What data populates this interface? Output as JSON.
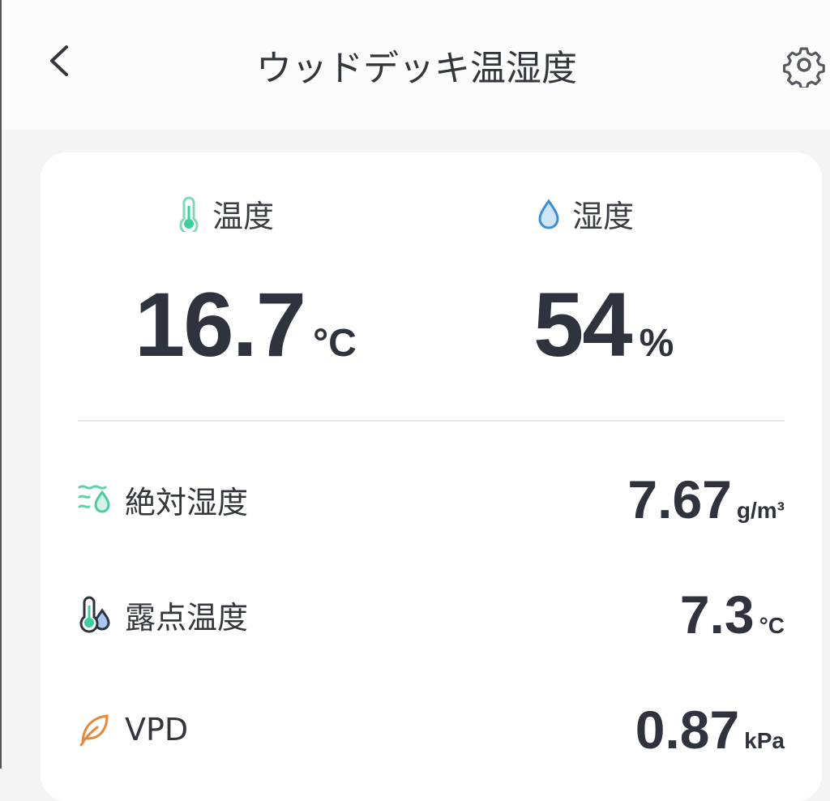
{
  "header": {
    "title": "ウッドデッキ温湿度",
    "back_icon": "chevron-left-icon",
    "settings_icon": "gear-icon"
  },
  "temperature": {
    "label": "温度",
    "value": "16.7",
    "unit": "°C",
    "icon": "thermometer-icon",
    "color": "#3ecfa0"
  },
  "humidity": {
    "label": "湿度",
    "value": "54",
    "unit": "%",
    "icon": "water-drop-icon",
    "color": "#3a8fd8"
  },
  "details": [
    {
      "label": "絶対湿度",
      "value": "7.67",
      "unit": "g/m³",
      "icon": "absolute-humidity-icon"
    },
    {
      "label": "露点温度",
      "value": "7.3",
      "unit": "°C",
      "icon": "dew-point-icon"
    },
    {
      "label": "VPD",
      "value": "0.87",
      "unit": "kPa",
      "icon": "leaf-icon"
    }
  ]
}
